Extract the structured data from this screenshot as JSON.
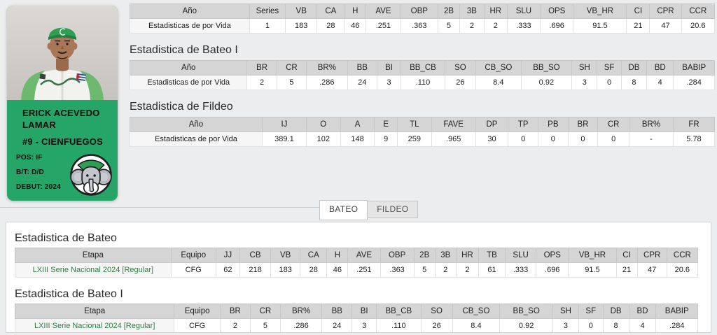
{
  "player_card": {
    "name_line1": "ERICK ACEVEDO",
    "name_line2": "LAMAR",
    "number_team": "#9 - CIENFUEGOS",
    "position": "POS: IF",
    "bat_throw": "B/T: D/D",
    "debut": "DEBUT: 2024",
    "card_color": "#25a567",
    "icons": {
      "team_logo": "cienfuegos-elephant-logo",
      "photo": "player-portrait"
    }
  },
  "tabs": [
    {
      "label": "BATEO",
      "active": true
    },
    {
      "label": "FILDEO",
      "active": false
    }
  ],
  "link_color": "#2f7a43",
  "sections": {
    "vida_bateo": {
      "headers": [
        "Año",
        "Series",
        "VB",
        "CA",
        "H",
        "AVE",
        "OBP",
        "2B",
        "3B",
        "HR",
        "SLU",
        "OPS",
        "VB_HR",
        "CI",
        "CPR",
        "CCR"
      ],
      "rows": [
        [
          "Estadisticas de por Vida",
          "1",
          "183",
          "28",
          "46",
          ".251",
          ".363",
          "5",
          "2",
          "2",
          ".333",
          ".696",
          "91.5",
          "21",
          "47",
          "20.6"
        ]
      ],
      "link_first": false
    },
    "vida_bateo_extra": {
      "title": "Estadistica de Bateo I",
      "headers": [
        "Año",
        "BR",
        "CR",
        "BR%",
        "BB",
        "BI",
        "BB_CB",
        "SO",
        "CB_SO",
        "BB_SO",
        "SH",
        "SF",
        "DB",
        "BD",
        "BABIP"
      ],
      "rows": [
        [
          "Estadisticas de por Vida",
          "2",
          "5",
          ".286",
          "24",
          "3",
          ".110",
          "26",
          "8.4",
          "0.92",
          "3",
          "0",
          "8",
          "4",
          ".284"
        ]
      ],
      "link_first": false
    },
    "vida_fildeo": {
      "title": "Estadistica de Fildeo",
      "headers": [
        "Año",
        "IJ",
        "O",
        "A",
        "E",
        "TL",
        "FAVE",
        "DP",
        "TP",
        "PB",
        "BR",
        "CR",
        "BR%",
        "FR"
      ],
      "rows": [
        [
          "Estadisticas de por Vida",
          "389.1",
          "102",
          "148",
          "9",
          "259",
          ".965",
          "30",
          "0",
          "0",
          "0",
          "0",
          "-",
          "5.78"
        ]
      ],
      "link_first": false
    },
    "season_bateo": {
      "title": "Estadistica de Bateo",
      "headers": [
        "Etapa",
        "Equipo",
        "JJ",
        "CB",
        "VB",
        "CA",
        "H",
        "AVE",
        "OBP",
        "2B",
        "3B",
        "HR",
        "TB",
        "SLU",
        "OPS",
        "VB_HR",
        "CI",
        "CPR",
        "CCR"
      ],
      "rows": [
        [
          "LXIII Serie Nacional 2024 [Regular]",
          "CFG",
          "62",
          "218",
          "183",
          "28",
          "46",
          ".251",
          ".363",
          "5",
          "2",
          "2",
          "61",
          ".333",
          ".696",
          "91.5",
          "21",
          "47",
          "20.6"
        ]
      ],
      "link_first": true
    },
    "season_bateo_extra": {
      "title": "Estadistica de Bateo I",
      "headers": [
        "Etapa",
        "Equipo",
        "BR",
        "CR",
        "BR%",
        "BB",
        "BI",
        "BB_CB",
        "SO",
        "CB_SO",
        "BB_SO",
        "SH",
        "SF",
        "DB",
        "BD",
        "BABIP"
      ],
      "rows": [
        [
          "LXIII Serie Nacional 2024 [Regular]",
          "CFG",
          "2",
          "5",
          ".286",
          "24",
          "3",
          ".110",
          "26",
          "8.4",
          "0.92",
          "3",
          "0",
          "8",
          "4",
          ".284"
        ]
      ],
      "link_first": true
    }
  }
}
